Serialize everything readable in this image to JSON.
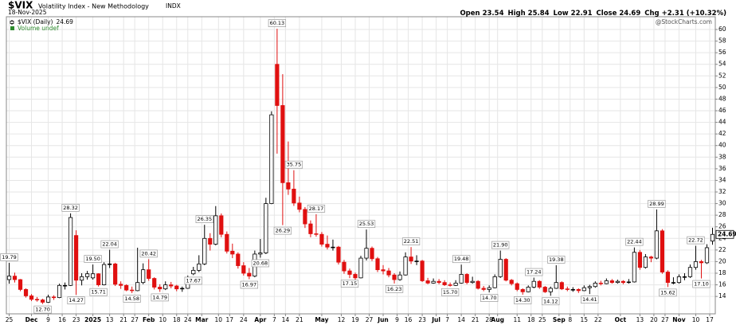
{
  "chart_data": {
    "type": "candlestick",
    "symbol": "$VIX",
    "name": "Volatility Index - New Methodology",
    "exchange": "INDX",
    "date": "18-Nov-2025",
    "quote": [
      {
        "label": "Open",
        "value": 23.54
      },
      {
        "label": "High",
        "value": 25.84
      },
      {
        "label": "Low",
        "value": 22.91
      },
      {
        "label": "Close",
        "value": 24.69
      },
      {
        "label": "Chg",
        "value": "+2.31 (+10.32%)"
      }
    ],
    "watermark": "@StockCharts.com",
    "legend": {
      "label": "$VIX (Daily)",
      "volume": "Volume undef"
    },
    "up_color": "#000000",
    "down_color": "#e01010",
    "volume_color": "#2e8b2e",
    "grid": true,
    "xlim": [
      0,
      254
    ],
    "ylim": [
      11,
      62.2
    ],
    "yticks": [
      14,
      16,
      18,
      20,
      22,
      24,
      26,
      28,
      30,
      32,
      34,
      36,
      38,
      40,
      42,
      44,
      46,
      48,
      50,
      52,
      54,
      56,
      58,
      60
    ],
    "xticks": [
      {
        "value": 1,
        "label": "25"
      },
      {
        "value": 9,
        "label": "Dec"
      },
      {
        "value": 15,
        "label": "9"
      },
      {
        "value": 20,
        "label": "16"
      },
      {
        "value": 25,
        "label": "23"
      },
      {
        "value": 31,
        "label": "2025"
      },
      {
        "value": 37,
        "label": "13"
      },
      {
        "value": 42,
        "label": "21"
      },
      {
        "value": 46,
        "label": "27"
      },
      {
        "value": 51,
        "label": "Feb"
      },
      {
        "value": 56,
        "label": "10"
      },
      {
        "value": 61,
        "label": "18"
      },
      {
        "value": 65,
        "label": "24"
      },
      {
        "value": 70,
        "label": "Mar"
      },
      {
        "value": 76,
        "label": "10"
      },
      {
        "value": 80,
        "label": "17"
      },
      {
        "value": 85,
        "label": "24"
      },
      {
        "value": 91,
        "label": "Apr"
      },
      {
        "value": 96,
        "label": "7"
      },
      {
        "value": 100,
        "label": "14"
      },
      {
        "value": 105,
        "label": "21"
      },
      {
        "value": 113,
        "label": "May"
      },
      {
        "value": 120,
        "label": "12"
      },
      {
        "value": 125,
        "label": "19"
      },
      {
        "value": 130,
        "label": "27"
      },
      {
        "value": 135,
        "label": "Jun"
      },
      {
        "value": 140,
        "label": "9"
      },
      {
        "value": 144,
        "label": "16"
      },
      {
        "value": 149,
        "label": "23"
      },
      {
        "value": 154,
        "label": "Jul"
      },
      {
        "value": 158,
        "label": "7"
      },
      {
        "value": 163,
        "label": "14"
      },
      {
        "value": 168,
        "label": "21"
      },
      {
        "value": 173,
        "label": "28"
      },
      {
        "value": 176,
        "label": "Aug"
      },
      {
        "value": 183,
        "label": "11"
      },
      {
        "value": 188,
        "label": "18"
      },
      {
        "value": 192,
        "label": "25"
      },
      {
        "value": 198,
        "label": "Sep"
      },
      {
        "value": 202,
        "label": "8"
      },
      {
        "value": 207,
        "label": "15"
      },
      {
        "value": 212,
        "label": "22"
      },
      {
        "value": 220,
        "label": "Oct"
      },
      {
        "value": 227,
        "label": "13"
      },
      {
        "value": 232,
        "label": "20"
      },
      {
        "value": 236,
        "label": "27"
      },
      {
        "value": 241,
        "label": "Nov"
      },
      {
        "value": 247,
        "label": "10"
      },
      {
        "value": 252,
        "label": "17"
      }
    ],
    "candles": {
      "x": [
        1,
        3,
        5,
        7,
        9,
        11,
        13,
        15,
        17,
        19,
        21,
        23,
        25,
        27,
        29,
        31,
        33,
        35,
        37,
        39,
        41,
        43,
        45,
        47,
        49,
        51,
        53,
        55,
        57,
        59,
        61,
        63,
        65,
        67,
        69,
        71,
        73,
        75,
        77,
        79,
        81,
        83,
        85,
        87,
        89,
        91,
        93,
        95,
        97,
        99,
        101,
        103,
        105,
        107,
        109,
        111,
        113,
        115,
        117,
        119,
        121,
        123,
        125,
        127,
        129,
        131,
        133,
        135,
        137,
        139,
        141,
        143,
        145,
        147,
        149,
        151,
        153,
        155,
        157,
        159,
        161,
        163,
        165,
        167,
        169,
        171,
        173,
        175,
        177,
        179,
        181,
        183,
        185,
        187,
        189,
        191,
        193,
        195,
        197,
        199,
        201,
        203,
        205,
        207,
        209,
        211,
        213,
        215,
        217,
        219,
        221,
        223,
        225,
        227,
        229,
        231,
        233,
        235,
        237,
        239,
        241,
        243,
        245,
        247,
        249,
        251,
        253
      ],
      "open": [
        16.9,
        17.5,
        16.9,
        15.2,
        14.1,
        13.5,
        13.4,
        13.0,
        13.9,
        13.8,
        15.9,
        15.9,
        24.5,
        16.8,
        17.4,
        17.2,
        17.9,
        16.0,
        19.5,
        19.6,
        16.1,
        15.9,
        15.1,
        15.0,
        16.4,
        18.6,
        17.1,
        15.6,
        15.3,
        16.0,
        15.8,
        15.3,
        15.4,
        17.9,
        18.5,
        19.6,
        24.0,
        23.0,
        27.9,
        24.7,
        21.8,
        21.3,
        19.3,
        18.0,
        17.5,
        21.3,
        21.5,
        30.0,
        54.0,
        46.9,
        33.6,
        32.5,
        30.1,
        29.0,
        26.5,
        24.8,
        24.7,
        23.0,
        22.5,
        22.5,
        19.9,
        18.4,
        17.8,
        17.2,
        20.6,
        22.3,
        20.5,
        18.6,
        18.4,
        17.7,
        16.9,
        17.7,
        20.8,
        20.1,
        20.1,
        16.7,
        16.3,
        16.6,
        16.4,
        16.0,
        15.9,
        16.3,
        17.8,
        16.4,
        16.6,
        15.4,
        15.2,
        15.5,
        17.4,
        20.4,
        16.8,
        16.2,
        15.2,
        14.8,
        15.6,
        16.6,
        15.6,
        14.8,
        15.4,
        16.4,
        15.3,
        15.2,
        15.2,
        15.0,
        15.5,
        15.7,
        16.3,
        16.2,
        16.7,
        16.4,
        16.6,
        16.4,
        16.5,
        21.6,
        19.0,
        20.8,
        20.6,
        25.3,
        18.2,
        16.4,
        16.4,
        17.4,
        17.4,
        19.0,
        20.0,
        19.8,
        23.54
      ],
      "high": [
        19.79,
        18.1,
        17.0,
        15.4,
        14.4,
        13.9,
        13.6,
        14.3,
        14.2,
        16.2,
        16.4,
        28.32,
        25.4,
        18.0,
        18.4,
        19.5,
        18.0,
        19.9,
        22.04,
        19.8,
        16.6,
        16.1,
        15.7,
        22.4,
        19.7,
        20.42,
        17.3,
        16.1,
        16.6,
        16.5,
        16.0,
        15.7,
        17.6,
        19.1,
        21.1,
        26.35,
        24.9,
        29.57,
        28.3,
        25.2,
        23.1,
        21.6,
        19.9,
        18.9,
        21.9,
        23.9,
        31.0,
        45.9,
        60.13,
        52.3,
        40.7,
        35.75,
        31.2,
        29.4,
        27.1,
        28.17,
        25.1,
        24.5,
        23.8,
        22.7,
        20.3,
        18.8,
        18.1,
        21.0,
        25.53,
        22.6,
        20.8,
        19.4,
        18.9,
        18.0,
        18.3,
        21.6,
        22.51,
        21.1,
        20.3,
        17.2,
        17.1,
        17.0,
        16.8,
        16.4,
        16.8,
        19.48,
        18.0,
        17.4,
        16.8,
        15.8,
        15.9,
        17.8,
        21.9,
        20.6,
        17.0,
        16.4,
        15.4,
        15.9,
        17.24,
        16.8,
        15.8,
        15.7,
        19.38,
        16.6,
        15.7,
        15.6,
        15.4,
        15.9,
        16.0,
        16.6,
        16.7,
        17.1,
        17.0,
        16.9,
        16.8,
        17.0,
        22.44,
        22.0,
        21.3,
        21.0,
        28.99,
        25.6,
        18.5,
        17.3,
        17.8,
        18.0,
        19.5,
        22.72,
        20.3,
        23.0,
        25.84
      ],
      "low": [
        16.2,
        16.4,
        14.9,
        13.8,
        13.2,
        13.1,
        12.7,
        12.9,
        13.4,
        13.7,
        15.2,
        15.8,
        14.27,
        15.9,
        16.9,
        16.9,
        15.71,
        15.9,
        18.9,
        15.8,
        15.3,
        14.9,
        14.58,
        14.9,
        16.1,
        16.7,
        15.2,
        14.79,
        15.1,
        15.4,
        14.9,
        14.8,
        15.3,
        17.67,
        18.2,
        19.4,
        21.9,
        22.8,
        24.2,
        21.4,
        20.6,
        18.8,
        17.6,
        16.97,
        17.3,
        20.68,
        21.3,
        29.9,
        38.6,
        26.29,
        31.5,
        29.6,
        28.5,
        25.8,
        24.2,
        24.3,
        22.6,
        22.1,
        21.9,
        19.5,
        17.9,
        17.15,
        16.9,
        17.1,
        20.2,
        20.1,
        18.2,
        17.8,
        17.3,
        16.23,
        16.7,
        17.6,
        19.6,
        19.4,
        16.5,
        16.1,
        16.2,
        16.1,
        15.8,
        15.7,
        15.8,
        16.2,
        16.1,
        16.2,
        15.2,
        14.9,
        14.7,
        15.4,
        17.2,
        16.6,
        15.9,
        14.9,
        14.3,
        14.7,
        15.4,
        15.3,
        14.6,
        14.12,
        15.3,
        15.1,
        14.9,
        14.8,
        14.6,
        14.9,
        14.41,
        15.5,
        15.9,
        16.1,
        16.2,
        16.2,
        16.1,
        16.2,
        16.4,
        18.6,
        18.8,
        19.9,
        20.4,
        17.9,
        15.62,
        16.1,
        16.2,
        16.8,
        17.2,
        18.6,
        17.1,
        19.6,
        22.91
      ],
      "close": [
        17.5,
        16.9,
        15.2,
        14.1,
        13.5,
        13.4,
        13.0,
        13.9,
        13.8,
        15.9,
        15.9,
        27.6,
        16.8,
        17.4,
        17.9,
        17.9,
        16.0,
        19.5,
        19.6,
        16.1,
        15.9,
        15.1,
        15.0,
        16.4,
        18.6,
        17.1,
        15.6,
        15.3,
        16.0,
        15.8,
        15.3,
        15.4,
        17.2,
        18.5,
        19.6,
        24.0,
        23.0,
        27.9,
        24.7,
        21.8,
        21.3,
        19.3,
        18.0,
        17.5,
        21.3,
        21.5,
        30.0,
        45.3,
        46.9,
        33.6,
        32.5,
        30.1,
        29.0,
        26.5,
        24.8,
        24.7,
        23.0,
        22.5,
        22.5,
        19.9,
        18.4,
        17.8,
        17.2,
        20.6,
        22.3,
        20.5,
        18.6,
        18.4,
        17.7,
        16.9,
        17.7,
        20.8,
        20.1,
        20.1,
        16.7,
        16.3,
        16.6,
        16.4,
        16.0,
        15.9,
        16.3,
        17.8,
        16.4,
        16.6,
        15.4,
        15.2,
        15.5,
        17.4,
        20.4,
        16.8,
        16.2,
        15.2,
        14.8,
        15.6,
        16.6,
        15.6,
        14.8,
        15.4,
        16.4,
        15.3,
        15.2,
        15.2,
        15.0,
        15.5,
        15.7,
        16.3,
        16.2,
        16.7,
        16.4,
        16.6,
        16.4,
        16.5,
        21.6,
        19.0,
        20.8,
        20.6,
        25.3,
        18.2,
        16.4,
        16.4,
        17.4,
        17.4,
        19.0,
        20.0,
        19.8,
        22.4,
        24.69
      ]
    },
    "annotations": [
      {
        "x": 1,
        "value": 19.79
      },
      {
        "x": 13,
        "value": 12.7,
        "label": "12.70"
      },
      {
        "x": 23,
        "value": 28.32
      },
      {
        "x": 25,
        "value": 14.27
      },
      {
        "x": 31,
        "value": 19.5,
        "label": "19.50"
      },
      {
        "x": 33,
        "value": 15.71
      },
      {
        "x": 37,
        "value": 22.04
      },
      {
        "x": 45,
        "value": 14.58
      },
      {
        "x": 51,
        "value": 20.42
      },
      {
        "x": 55,
        "value": 14.79
      },
      {
        "x": 67,
        "value": 17.67
      },
      {
        "x": 71,
        "value": 26.35
      },
      {
        "x": 87,
        "value": 16.97
      },
      {
        "x": 91,
        "value": 20.68
      },
      {
        "x": 97,
        "value": 60.13
      },
      {
        "x": 99,
        "value": 26.29
      },
      {
        "x": 103,
        "value": 35.75
      },
      {
        "x": 111,
        "value": 28.17
      },
      {
        "x": 123,
        "value": 17.15
      },
      {
        "x": 129,
        "value": 25.53
      },
      {
        "x": 139,
        "value": 16.23
      },
      {
        "x": 145,
        "value": 22.51
      },
      {
        "x": 159,
        "value": 15.7,
        "label": "15.70"
      },
      {
        "x": 163,
        "value": 19.48
      },
      {
        "x": 173,
        "value": 14.7,
        "label": "14.70"
      },
      {
        "x": 177,
        "value": 21.9,
        "label": "21.90"
      },
      {
        "x": 185,
        "value": 14.3,
        "label": "14.30"
      },
      {
        "x": 189,
        "value": 17.24
      },
      {
        "x": 195,
        "value": 14.12
      },
      {
        "x": 197,
        "value": 19.38
      },
      {
        "x": 209,
        "value": 14.41
      },
      {
        "x": 225,
        "value": 22.44
      },
      {
        "x": 233,
        "value": 28.99
      },
      {
        "x": 237,
        "value": 15.62
      },
      {
        "x": 247,
        "value": 22.72
      },
      {
        "x": 249,
        "value": 17.1,
        "label": "17.10"
      }
    ]
  }
}
